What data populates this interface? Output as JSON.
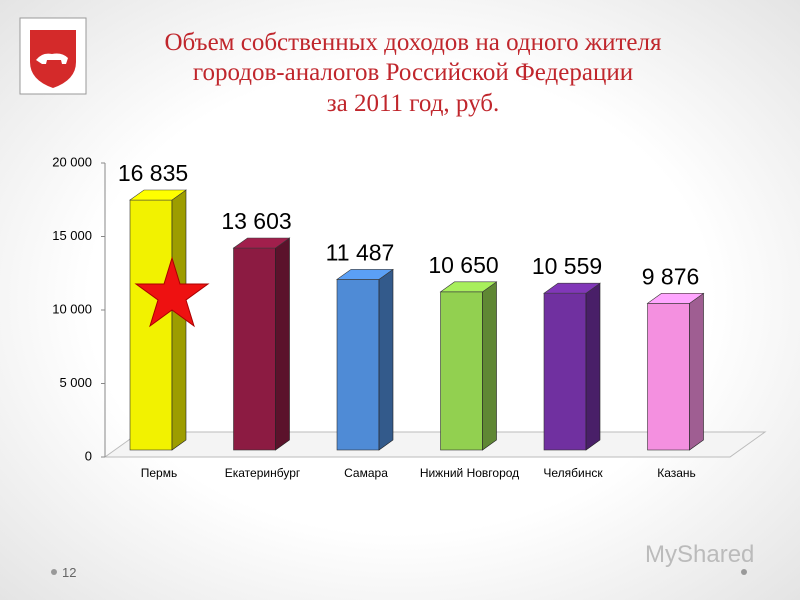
{
  "chart_data": {
    "type": "bar3d",
    "title": [
      "Объем собственных доходов на одного жителя",
      "городов-аналогов Российской Федерации",
      "за 2011 год, руб."
    ],
    "categories": [
      "Пермь",
      "Екатеринбург",
      "Самара",
      "Нижний Новгород",
      "Челябинск",
      "Казань"
    ],
    "values": [
      16835,
      13603,
      11487,
      10650,
      10559,
      9876
    ],
    "value_labels": [
      "16 835",
      "13 603",
      "11 487",
      "10 650",
      "10 559",
      "9 876"
    ],
    "colors": [
      "#f2f200",
      "#8c1b42",
      "#4f8bd6",
      "#92d050",
      "#7030a0",
      "#f490e0"
    ],
    "ylim": [
      0,
      20000
    ],
    "yticks": [
      0,
      {
        "value": 5000,
        "label": "5 000"
      },
      {
        "value": 10000,
        "label": "10 000"
      },
      {
        "value": 15000,
        "label": "15 000"
      },
      {
        "value": 20000,
        "label": "20 000"
      }
    ]
  },
  "slide_number": "12",
  "watermark": "MyShared"
}
